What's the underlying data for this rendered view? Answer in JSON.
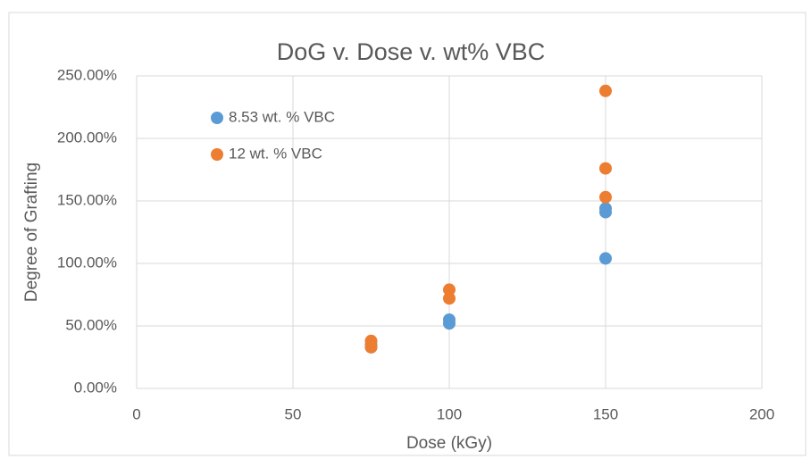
{
  "chart_data": {
    "type": "scatter",
    "title": "DoG v. Dose v. wt% VBC",
    "xlabel": "Dose (kGy)",
    "ylabel": "Degree of Grafting",
    "xlim": [
      0,
      200
    ],
    "xticks": [
      0,
      50,
      100,
      150,
      200
    ],
    "ylim": [
      0,
      250
    ],
    "yticks": [
      {
        "value": 0,
        "label": "0.00%"
      },
      {
        "value": 50,
        "label": "50.00%"
      },
      {
        "value": 100,
        "label": "100.00%"
      },
      {
        "value": 150,
        "label": "150.00%"
      },
      {
        "value": 200,
        "label": "200.00%"
      },
      {
        "value": 250,
        "label": "250.00%"
      }
    ],
    "grid": true,
    "legend": "upper left",
    "series": [
      {
        "name": "8.53 wt. % VBC",
        "color": "#5b9bd5",
        "x": [
          75,
          75,
          100,
          100,
          150,
          150,
          150
        ],
        "values": [
          35,
          33,
          52,
          55,
          141,
          144,
          104
        ]
      },
      {
        "name": "12 wt. % VBC",
        "color": "#ed7d31",
        "x": [
          75,
          75,
          100,
          100,
          150,
          150,
          150
        ],
        "values": [
          38,
          33,
          72,
          79,
          238,
          176,
          153
        ]
      }
    ]
  }
}
